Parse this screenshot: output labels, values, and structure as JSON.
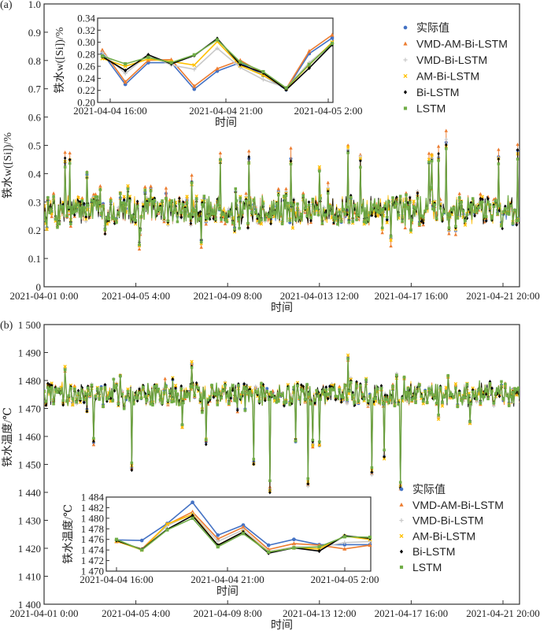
{
  "chart_data": [
    {
      "id": "a",
      "type": "line",
      "panel_label": "(a)",
      "xlabel": "时间",
      "ylabel": "铁水w([Si])/%",
      "ylim": [
        0,
        1.0
      ],
      "yticks": [
        "0",
        "0.1",
        "0.2",
        "0.3",
        "0.4",
        "0.5",
        "0.6",
        "0.7",
        "0.8",
        "0.9",
        "1.0"
      ],
      "xticks": [
        "2021-04-01 0:00",
        "2021-04-05 4:00",
        "2021-04-09 8:00",
        "2021-04-013 12:00",
        "2021-04-17 16:00",
        "2021-04-21 20:00"
      ],
      "grid": false,
      "legend_position": "top-right",
      "series_summary": {
        "baseline": 0.27,
        "noise_range": [
          0.2,
          0.35
        ],
        "n_points": 500,
        "spikes_high": [
          {
            "t": 0.045,
            "v": 0.44
          },
          {
            "t": 0.055,
            "v": 0.45
          },
          {
            "t": 0.09,
            "v": 0.4
          },
          {
            "t": 0.225,
            "v": 0.35
          },
          {
            "t": 0.31,
            "v": 0.37
          },
          {
            "t": 0.37,
            "v": 0.45
          },
          {
            "t": 0.43,
            "v": 0.45
          },
          {
            "t": 0.52,
            "v": 0.45
          },
          {
            "t": 0.58,
            "v": 0.41
          },
          {
            "t": 0.64,
            "v": 0.48
          },
          {
            "t": 0.665,
            "v": 0.45
          },
          {
            "t": 0.81,
            "v": 0.44
          },
          {
            "t": 0.815,
            "v": 0.45
          },
          {
            "t": 0.83,
            "v": 0.46
          },
          {
            "t": 0.845,
            "v": 0.51
          },
          {
            "t": 0.955,
            "v": 0.46
          },
          {
            "t": 0.995,
            "v": 0.48
          }
        ],
        "spikes_low": [
          {
            "t": 0.2,
            "v": 0.15
          },
          {
            "t": 0.33,
            "v": 0.16
          },
          {
            "t": 0.73,
            "v": 0.17
          }
        ]
      },
      "inset": {
        "ylabel": "铁水w([Si])/%",
        "xlabel": "时间",
        "ylim": [
          0.2,
          0.34
        ],
        "yticks": [
          "0.20",
          "0.22",
          "0.24",
          "0.26",
          "0.28",
          "0.30",
          "0.32",
          "0.34"
        ],
        "xticks": [
          "2021-04-04 16:00",
          "2021-04-04 21:00",
          "2021-04-05 2:00"
        ],
        "series": [
          {
            "name": "实际值",
            "color": "#4472c4",
            "marker": "circle",
            "values": [
              0.282,
              0.23,
              0.266,
              0.266,
              0.222,
              0.252,
              0.266,
              0.245,
              0.221,
              0.281,
              0.307
            ]
          },
          {
            "name": "VMD-AM-Bi-LSTM",
            "color": "#ed7d31",
            "marker": "triangle",
            "values": [
              0.287,
              0.234,
              0.27,
              0.271,
              0.227,
              0.256,
              0.27,
              0.248,
              0.223,
              0.285,
              0.312
            ]
          },
          {
            "name": "VMD-Bi-LSTM",
            "color": "#c9c9c9",
            "marker": "plus",
            "values": [
              0.283,
              0.248,
              0.279,
              0.262,
              0.255,
              0.29,
              0.258,
              0.238,
              0.224,
              0.266,
              0.298
            ]
          },
          {
            "name": "AM-Bi-LSTM",
            "color": "#ffc000",
            "marker": "x",
            "values": [
              0.273,
              0.26,
              0.272,
              0.268,
              0.262,
              0.301,
              0.261,
              0.245,
              0.223,
              0.262,
              0.3
            ]
          },
          {
            "name": "Bi-LSTM",
            "color": "#000000",
            "marker": "diamond",
            "values": [
              0.276,
              0.253,
              0.279,
              0.264,
              0.278,
              0.306,
              0.263,
              0.249,
              0.221,
              0.257,
              0.296
            ]
          },
          {
            "name": "LSTM",
            "color": "#70ad47",
            "marker": "square",
            "values": [
              0.277,
              0.264,
              0.275,
              0.266,
              0.279,
              0.304,
              0.267,
              0.251,
              0.224,
              0.263,
              0.298
            ]
          }
        ]
      }
    },
    {
      "id": "b",
      "type": "line",
      "panel_label": "(b)",
      "xlabel": "时间",
      "ylabel": "铁水温度/℃",
      "ylim": [
        1400,
        1500
      ],
      "yticks": [
        "1 400",
        "1 410",
        "1 420",
        "1 430",
        "1 440",
        "1 450",
        "1 460",
        "1 470",
        "1 480",
        "1 490",
        "1 500"
      ],
      "xticks": [
        "2021-04-01 0:00",
        "2021-04-05 4:00",
        "2021-04-09 8:00",
        "2021-04-13 12:00",
        "2021-04-17 16:00",
        "2021-04-21 20:00"
      ],
      "grid": false,
      "legend_position": "bottom-right",
      "series_summary": {
        "baseline": 1475,
        "noise_range": [
          1469,
          1482
        ],
        "n_points": 500,
        "spikes_high": [
          {
            "t": 0.045,
            "v": 1484
          },
          {
            "t": 0.31,
            "v": 1486
          },
          {
            "t": 0.64,
            "v": 1488
          }
        ],
        "spikes_low": [
          {
            "t": 0.105,
            "v": 1458
          },
          {
            "t": 0.185,
            "v": 1449
          },
          {
            "t": 0.29,
            "v": 1464
          },
          {
            "t": 0.34,
            "v": 1458
          },
          {
            "t": 0.44,
            "v": 1451
          },
          {
            "t": 0.475,
            "v": 1441
          },
          {
            "t": 0.53,
            "v": 1458
          },
          {
            "t": 0.555,
            "v": 1443
          },
          {
            "t": 0.565,
            "v": 1457
          },
          {
            "t": 0.58,
            "v": 1457
          },
          {
            "t": 0.69,
            "v": 1447
          },
          {
            "t": 0.715,
            "v": 1453
          },
          {
            "t": 0.75,
            "v": 1442
          },
          {
            "t": 0.83,
            "v": 1467
          },
          {
            "t": 0.895,
            "v": 1465
          }
        ]
      },
      "inset": {
        "ylabel": "铁水温度/℃",
        "xlabel": "时间",
        "ylim": [
          1470,
          1484
        ],
        "yticks": [
          "1 470",
          "1 472",
          "1 474",
          "1 476",
          "1 478",
          "1 480",
          "1 482",
          "1 484"
        ],
        "xticks": [
          "2021-04-04 16:00",
          "2021-04-04 21:00",
          "2021-04-05 2:00"
        ],
        "series": [
          {
            "name": "实际值",
            "color": "#4472c4",
            "marker": "circle",
            "values": [
              1475.9,
              1475.8,
              1479.0,
              1483.0,
              1476.8,
              1478.7,
              1474.9,
              1476.0,
              1475.0,
              1475.0,
              1475.0
            ]
          },
          {
            "name": "VMD-AM-Bi-LSTM",
            "color": "#ed7d31",
            "marker": "triangle",
            "values": [
              1475.6,
              1474.2,
              1478.8,
              1481.2,
              1476.1,
              1478.3,
              1474.1,
              1475.2,
              1474.9,
              1474.2,
              1474.9
            ]
          },
          {
            "name": "VMD-Bi-LSTM",
            "color": "#c9c9c9",
            "marker": "plus",
            "values": [
              1475.8,
              1474.1,
              1478.6,
              1480.8,
              1475.6,
              1477.8,
              1473.7,
              1474.6,
              1474.5,
              1475.4,
              1475.6
            ]
          },
          {
            "name": "AM-Bi-LSTM",
            "color": "#ffc000",
            "marker": "x",
            "values": [
              1475.7,
              1474.0,
              1478.9,
              1480.7,
              1474.9,
              1477.4,
              1473.6,
              1474.4,
              1474.2,
              1476.6,
              1476.0
            ]
          },
          {
            "name": "Bi-LSTM",
            "color": "#000000",
            "marker": "diamond",
            "values": [
              1475.8,
              1474.1,
              1477.9,
              1480.5,
              1474.9,
              1477.4,
              1473.4,
              1474.4,
              1473.8,
              1476.7,
              1476.2
            ]
          },
          {
            "name": "LSTM",
            "color": "#70ad47",
            "marker": "square",
            "values": [
              1476.0,
              1474.0,
              1477.8,
              1480.0,
              1474.6,
              1477.1,
              1473.6,
              1474.4,
              1474.6,
              1476.5,
              1476.4
            ]
          }
        ]
      }
    }
  ],
  "legend": [
    {
      "name": "实际值",
      "color": "#4472c4",
      "marker": "circle"
    },
    {
      "name": "VMD-AM-Bi-LSTM",
      "color": "#ed7d31",
      "marker": "triangle"
    },
    {
      "name": "VMD-Bi-LSTM",
      "color": "#c9c9c9",
      "marker": "plus"
    },
    {
      "name": "AM-Bi-LSTM",
      "color": "#ffc000",
      "marker": "x"
    },
    {
      "name": "Bi-LSTM",
      "color": "#000000",
      "marker": "diamond"
    },
    {
      "name": "LSTM",
      "color": "#70ad47",
      "marker": "square"
    }
  ]
}
